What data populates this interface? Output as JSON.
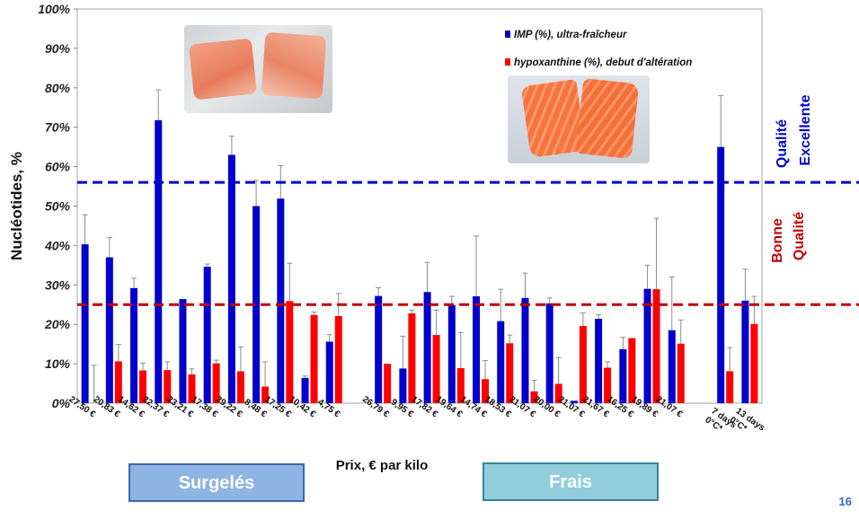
{
  "chart_data": {
    "type": "bar",
    "ylabel": "Nucléotides, %",
    "xlabel": "Prix, € par kilo",
    "ylim": [
      0,
      100
    ],
    "yticks": [
      "0%",
      "10%",
      "20%",
      "30%",
      "40%",
      "50%",
      "60%",
      "70%",
      "80%",
      "90%",
      "100%"
    ],
    "grid": false,
    "legend_position": "top-right",
    "categories": [
      "27,50 €",
      "20,83 €",
      "14,62 €",
      "22,37 €",
      "23,21 €",
      "17,38 €",
      "29,22 €",
      "8,48 €",
      "17,25 €",
      "10,42 €",
      "4,75 €",
      "",
      "26,79 €",
      "9,95 €",
      "17,82 €",
      "19,64 €",
      "14,74 €",
      "18,53 €",
      "21,07 €",
      "20,00 €",
      "21,07 €",
      "21,67 €",
      "16,25 €",
      "19,89 €",
      "21,07 €",
      "",
      "7 days 0°C*",
      "13 days 0°C*"
    ],
    "series": [
      {
        "name": "IMP (%), ultra-fraîcheur",
        "color": "#0000cc",
        "values": [
          40.3,
          37,
          29.2,
          71.8,
          26.4,
          34.6,
          63,
          50,
          51.9,
          6.4,
          15.6,
          null,
          27.2,
          8.8,
          28.2,
          24.9,
          27.1,
          20.8,
          26.7,
          25.3,
          0.6,
          21.4,
          13.7,
          29,
          18.5,
          null,
          65,
          26
        ],
        "errors": [
          7.5,
          5,
          2.5,
          7.7,
          0,
          0.7,
          4.7,
          6.5,
          8.4,
          0.5,
          1.8,
          null,
          2.1,
          8.2,
          7.5,
          2.2,
          15.3,
          8.1,
          6.3,
          1.4,
          0,
          1,
          3,
          6,
          13.5,
          null,
          13,
          8
        ]
      },
      {
        "name": "hypoxanthine (%), debut d'altération",
        "color": "#ff0000",
        "values": [
          0,
          10.6,
          8.3,
          8.4,
          7.3,
          10.1,
          8.1,
          4.2,
          25.9,
          22.4,
          22.1,
          null,
          10,
          22.8,
          17.3,
          8.9,
          6.1,
          15.2,
          3,
          4.9,
          19.6,
          9,
          16.5,
          28.9,
          15.1,
          null,
          8.1,
          20.1
        ],
        "errors": [
          9.6,
          4.3,
          1.9,
          2.1,
          1.4,
          0.8,
          6.2,
          6.3,
          9.6,
          0.7,
          5.7,
          null,
          0,
          0.8,
          6.3,
          9,
          4.7,
          2.1,
          2.8,
          6.6,
          3.3,
          1.5,
          0,
          18,
          6,
          null,
          6,
          7
        ]
      }
    ],
    "reference_lines": [
      {
        "value": 56,
        "color": "#0000cc",
        "label": "Qualité Excellente"
      },
      {
        "value": 25,
        "color": "#c00000",
        "label": "Bonne Qualité"
      }
    ]
  },
  "legend": {
    "imp_label": "IMP (%), ultra-fraîcheur",
    "hypo_label": "hypoxanthine (%), debut d'altération"
  },
  "annotations": {
    "excellent": [
      "Qualité",
      "Excellente"
    ],
    "good": [
      "Bonne",
      "Qualité"
    ]
  },
  "groups": {
    "frozen_label": "Surgelés",
    "fresh_label": "Frais"
  },
  "slide_number": "16",
  "colors": {
    "imp": "#0000cc",
    "hypoxanthine": "#ff0000",
    "excellent_line": "#0000cc",
    "good_line": "#c00000"
  },
  "images": {
    "frozen": "frozen-salmon-photo",
    "fresh": "fresh-salmon-photo"
  }
}
